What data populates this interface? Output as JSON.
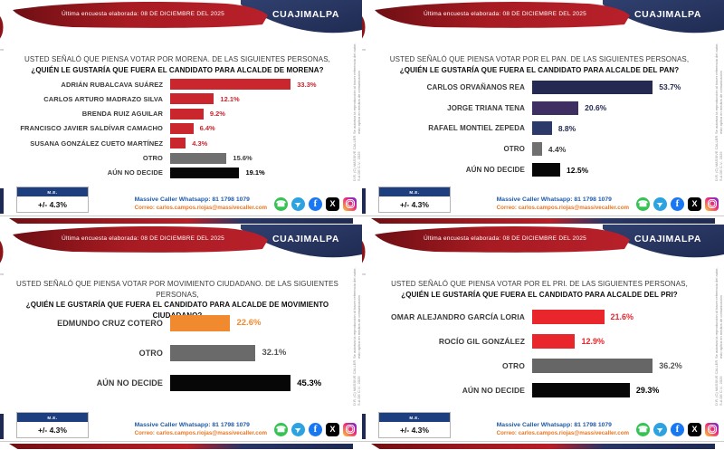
{
  "shared": {
    "date_banner": "Última encuesta elaborada: 08 DE DICIEMBRE DEL 2025",
    "region": "CUAJIMALPA",
    "logo_partial": ")",
    "logo_sub": "ve",
    "disclaimer_line1": "D.R. (C) MASSIVE CALLER S.A DE C.V., 2025",
    "disclaimer_line2": "Se autoriza la reproducción al hacer referencia del autor, esto aplica en medios de comunicación",
    "margin_label": "M.E.",
    "margin_value": "+/- 4.3%",
    "whatsapp_line": "Massive Caller Whatsapp: 81 1798 1079",
    "email_line": "Correo: carlos.campos.riojas@massivecaller.com",
    "icons": {
      "whatsapp": "☎",
      "telegram": "➤",
      "facebook": "f",
      "x": "X",
      "instagram": ""
    },
    "colors": {
      "banner_red": "#A81B22",
      "banner_blue": "#28356A",
      "morena_red": "#C9262E",
      "pan_navy": "#252A52",
      "mc_orange": "#F18A2E",
      "pri_red": "#E8262B",
      "otro_gray": "#6F6F6F",
      "no_decide_black": "#070707",
      "contact_blue": "#1F5BA8",
      "contact_orange": "#E87722"
    }
  },
  "panels": [
    {
      "question_line1": "USTED SEÑALÓ QUE PIENSA VOTAR POR MORENA. DE LAS SIGUIENTES PERSONAS,",
      "question_line2": "¿QUIÉN LE GUSTARÍA QUE FUERA EL CANDIDATO PARA ALCALDE DE MORENA?"
    },
    {
      "question_line1": "USTED SEÑALÓ QUE PIENSA VOTAR POR EL PAN. DE LAS SIGUIENTES PERSONAS,",
      "question_line2": "¿QUIÉN LE GUSTARÍA QUE FUERA EL CANDIDATO PARA ALCALDE DEL PAN?"
    },
    {
      "question_line1": "USTED SEÑALÓ QUE PIENSA VOTAR POR MOVIMIENTO CIUDADANO. DE LAS SIGUIENTES PERSONAS,",
      "question_line2": "¿QUIÉN LE GUSTARÍA QUE FUERA EL CANDIDATO PARA ALCALDE DE MOVIMIENTO CIUDADANO?"
    },
    {
      "question_line1": "USTED SEÑALÓ QUE PIENSA VOTAR POR EL PRI. DE LAS SIGUIENTES PERSONAS,",
      "question_line2": "¿QUIÉN LE GUSTARÍA QUE FUERA EL CANDIDATO PARA ALCALDE DEL PRI?"
    }
  ],
  "chart_data": [
    {
      "type": "bar",
      "orientation": "horizontal",
      "party": "MORENA",
      "rows": [
        {
          "label": "ADRIÁN RUBALCAVA SUÁREZ",
          "value": 33.3,
          "display": "33.3%",
          "color": "#C9262E",
          "value_color": "#C9262E"
        },
        {
          "label": "CARLOS ARTURO MADRAZO SILVA",
          "value": 12.1,
          "display": "12.1%",
          "color": "#C9262E",
          "value_color": "#C9262E"
        },
        {
          "label": "BRENDA RUIZ AGUILAR",
          "value": 9.2,
          "display": "9.2%",
          "color": "#C9262E",
          "value_color": "#C9262E"
        },
        {
          "label": "FRANCISCO JAVIER SALDÍVAR CAMACHO",
          "value": 6.4,
          "display": "6.4%",
          "color": "#C9262E",
          "value_color": "#C9262E"
        },
        {
          "label": "SUSANA GONZÁLEZ CUETO MARTÍNEZ",
          "value": 4.3,
          "display": "4.3%",
          "color": "#C9262E",
          "value_color": "#C9262E"
        },
        {
          "label": "OTRO",
          "value": 15.6,
          "display": "15.6%",
          "color": "#6F6F6F",
          "value_color": "#3a3a3a"
        },
        {
          "label": "AÚN NO DECIDE",
          "value": 19.1,
          "display": "19.1%",
          "color": "#070707",
          "value_color": "#000000"
        }
      ]
    },
    {
      "type": "bar",
      "orientation": "horizontal",
      "party": "PAN",
      "rows": [
        {
          "label": "CARLOS ORVAÑANOS REA",
          "value": 53.7,
          "display": "53.7%",
          "color": "#252A52",
          "value_color": "#252A52"
        },
        {
          "label": "JORGE TRIANA TENA",
          "value": 20.6,
          "display": "20.6%",
          "color": "#3F2E62",
          "value_color": "#252A52"
        },
        {
          "label": "RAFAEL MONTIEL ZEPEDA",
          "value": 8.8,
          "display": "8.8%",
          "color": "#2B3A68",
          "value_color": "#252A52"
        },
        {
          "label": "OTRO",
          "value": 4.4,
          "display": "4.4%",
          "color": "#6F6F6F",
          "value_color": "#3a3a3a"
        },
        {
          "label": "AÚN NO DECIDE",
          "value": 12.5,
          "display": "12.5%",
          "color": "#070707",
          "value_color": "#000000"
        }
      ]
    },
    {
      "type": "bar",
      "orientation": "horizontal",
      "party": "MOVIMIENTO CIUDADANO",
      "rows": [
        {
          "label": "EDMUNDO CRUZ COTERO",
          "value": 22.6,
          "display": "22.6%",
          "color": "#F18A2E",
          "value_color": "#F18A2E"
        },
        {
          "label": "OTRO",
          "value": 32.1,
          "display": "32.1%",
          "color": "#6A6A6A",
          "value_color": "#555555"
        },
        {
          "label": "AÚN NO DECIDE",
          "value": 45.3,
          "display": "45.3%",
          "color": "#070707",
          "value_color": "#000000"
        }
      ]
    },
    {
      "type": "bar",
      "orientation": "horizontal",
      "party": "PRI",
      "rows": [
        {
          "label": "OMAR ALEJANDRO GARCÍA LORIA",
          "value": 21.6,
          "display": "21.6%",
          "color": "#E8262B",
          "value_color": "#E8262B"
        },
        {
          "label": "ROCÍO GIL GONZÁLEZ",
          "value": 12.9,
          "display": "12.9%",
          "color": "#E8262B",
          "value_color": "#E8262B"
        },
        {
          "label": "OTRO",
          "value": 36.2,
          "display": "36.2%",
          "color": "#666666",
          "value_color": "#555555"
        },
        {
          "label": "AÚN NO DECIDE",
          "value": 29.3,
          "display": "29.3%",
          "color": "#070707",
          "value_color": "#000000"
        }
      ]
    }
  ]
}
